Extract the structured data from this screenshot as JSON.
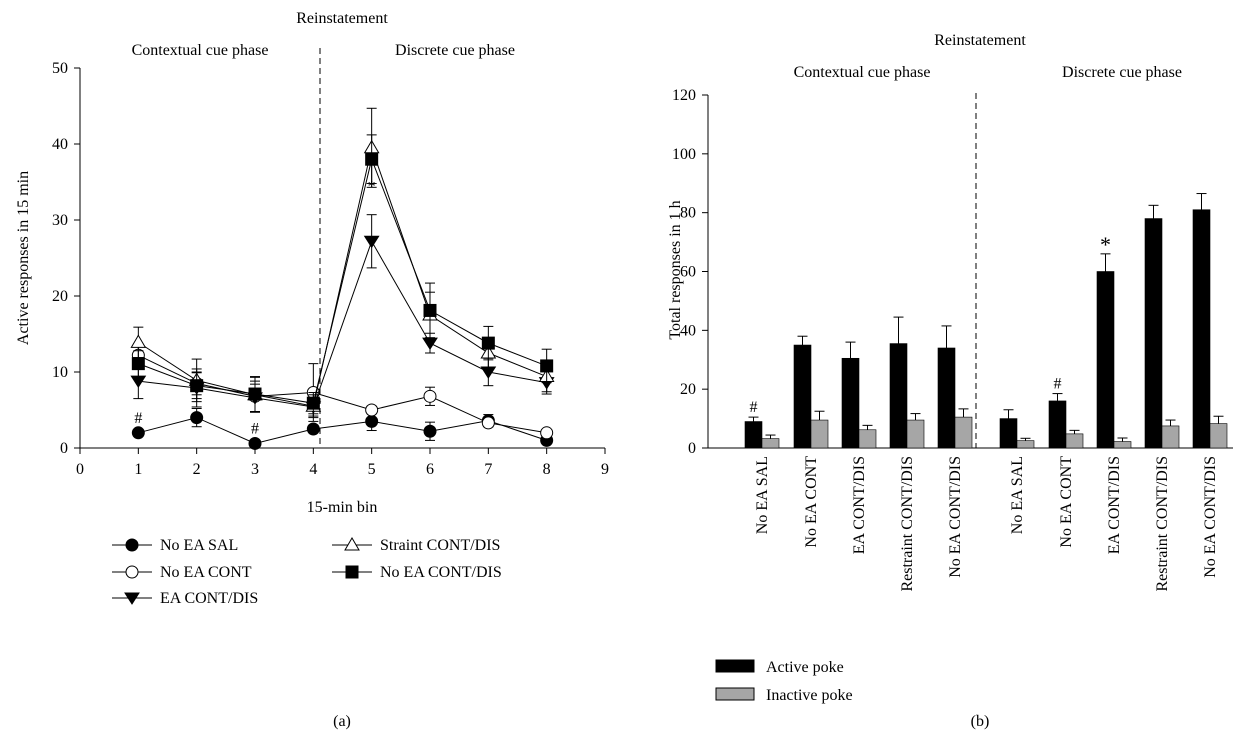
{
  "chart_data": [
    {
      "panel_label": "(a)",
      "type": "line",
      "top_title": "Reinstatement",
      "phase_labels": [
        "Contextual cue phase",
        "Discrete cue phase"
      ],
      "xlabel": "15-min bin",
      "ylabel": "Active responses in 15 min",
      "xlim": [
        0,
        9
      ],
      "ylim": [
        0,
        50
      ],
      "xticks": [
        0,
        1,
        2,
        3,
        4,
        5,
        6,
        7,
        8,
        9
      ],
      "yticks": [
        0,
        10,
        20,
        30,
        40,
        50
      ],
      "divider_x": 4.1,
      "x": [
        1,
        2,
        3,
        4,
        5,
        6,
        7,
        8
      ],
      "series": [
        {
          "name": "No EA SAL",
          "marker": "filled-circle",
          "values": [
            2.0,
            4.0,
            0.6,
            2.5,
            3.5,
            2.2,
            3.6,
            1.0
          ],
          "errors": [
            0.4,
            1.2,
            0.4,
            0.5,
            1.2,
            1.2,
            0.8,
            0.4
          ]
        },
        {
          "name": "No EA CONT",
          "marker": "open-circle",
          "values": [
            12.2,
            8.5,
            6.8,
            7.3,
            5.0,
            6.8,
            3.3,
            2.0
          ],
          "errors": [
            1.5,
            1.5,
            2.0,
            3.8,
            0.5,
            1.2,
            0.5,
            0.4
          ]
        },
        {
          "name": "EA CONT/DIS",
          "marker": "filled-triangle-down",
          "values": [
            8.8,
            7.9,
            6.6,
            5.4,
            27.2,
            13.8,
            10.0,
            8.6
          ],
          "errors": [
            2.3,
            2.5,
            1.8,
            1.2,
            3.5,
            1.3,
            1.8,
            1.5
          ]
        },
        {
          "name": "Straint CONT/DIS",
          "marker": "open-triangle-up",
          "values": [
            13.9,
            8.9,
            7.0,
            5.5,
            39.5,
            17.5,
            12.5,
            9.4
          ],
          "errors": [
            2.0,
            2.8,
            2.3,
            1.5,
            5.2,
            3.0,
            2.0,
            2.0
          ]
        },
        {
          "name": "No EA CONT/DIS",
          "marker": "filled-square",
          "values": [
            11.1,
            8.2,
            7.1,
            5.9,
            38.0,
            18.1,
            13.8,
            10.8
          ],
          "errors": [
            1.7,
            1.7,
            2.3,
            1.4,
            3.2,
            3.6,
            2.2,
            2.2
          ]
        }
      ],
      "annotations": [
        {
          "text": "#",
          "x": 1,
          "y": 2.0
        },
        {
          "text": "#",
          "x": 3,
          "y": 0.6
        },
        {
          "text": "*",
          "x": 5,
          "y": 27.2
        }
      ]
    },
    {
      "panel_label": "(b)",
      "type": "bar",
      "top_title": "Reinstatement",
      "phase_labels": [
        "Contextual cue phase",
        "Discrete cue phase"
      ],
      "ylabel": "Total responses in 1 h",
      "ylim": [
        0,
        120
      ],
      "yticks": [
        0,
        20,
        40,
        60,
        80,
        100,
        120
      ],
      "categories": [
        "No EA SAL",
        "No EA CONT",
        "EA CONT/DIS",
        "Restraint CONT/DIS",
        "No EA CONT/DIS",
        "No EA SAL",
        "No EA CONT",
        "EA CONT/DIS",
        "Restraint CONT/DIS",
        "No EA CONT/DIS"
      ],
      "series": [
        {
          "name": "Active poke",
          "color": "#000000",
          "values": [
            9,
            35,
            30.5,
            35.5,
            34,
            10,
            16,
            60,
            78,
            81
          ],
          "errors": [
            1.5,
            3,
            5.5,
            9,
            7.5,
            3,
            2.5,
            6,
            4.5,
            5.5
          ]
        },
        {
          "name": "Inactive poke",
          "color": "#a6a6a6",
          "values": [
            3.2,
            9.5,
            6.2,
            9.5,
            10.5,
            2.5,
            4.8,
            2.2,
            7.5,
            8.3
          ],
          "errors": [
            1.2,
            3,
            1.5,
            2.2,
            2.8,
            0.8,
            1.2,
            1.2,
            2,
            2.5
          ]
        }
      ],
      "annotations": [
        {
          "text": "#",
          "category_index": 0
        },
        {
          "text": "#",
          "category_index": 6
        },
        {
          "text": "*",
          "category_index": 7
        }
      ]
    }
  ]
}
